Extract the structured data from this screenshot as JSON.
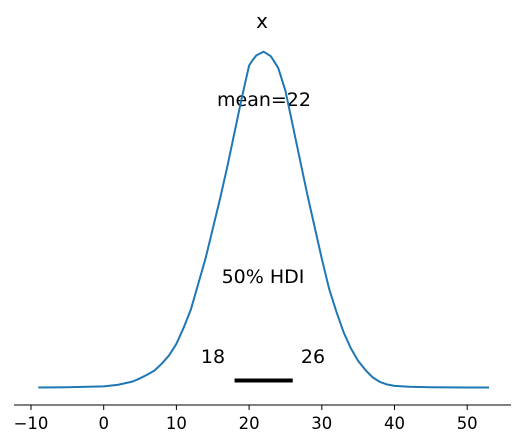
{
  "chart_data": {
    "type": "line",
    "title": "x",
    "xlabel": "",
    "ylabel": "",
    "xlim": [
      -10,
      53
    ],
    "xticks": [
      -10,
      0,
      10,
      20,
      30,
      40,
      50
    ],
    "xtick_labels": [
      "−10",
      "0",
      "10",
      "20",
      "30",
      "40",
      "50"
    ],
    "grid": false,
    "series": [
      {
        "color": "#1f77b4",
        "x": [
          -9,
          -5,
          0,
          2,
          4,
          5,
          6,
          7,
          8,
          9,
          10,
          11,
          12,
          13,
          14,
          15,
          16,
          17,
          18,
          19,
          20,
          20.5,
          21,
          22,
          23,
          24,
          25,
          26,
          27,
          28,
          29,
          30,
          31,
          32,
          33,
          34,
          35,
          36,
          37,
          38,
          39,
          40,
          42,
          45,
          50,
          53
        ],
        "y": [
          0.0001,
          0.0005,
          0.0025,
          0.006,
          0.013,
          0.02,
          0.028,
          0.037,
          0.052,
          0.07,
          0.095,
          0.13,
          0.17,
          0.225,
          0.28,
          0.345,
          0.41,
          0.48,
          0.555,
          0.63,
          0.7,
          0.712,
          0.722,
          0.73,
          0.72,
          0.695,
          0.645,
          0.57,
          0.495,
          0.42,
          0.35,
          0.28,
          0.215,
          0.165,
          0.12,
          0.085,
          0.058,
          0.038,
          0.022,
          0.012,
          0.0065,
          0.0035,
          0.0015,
          0.0005,
          0.0001,
          5e-05
        ]
      }
    ],
    "annotations": {
      "mean_label": "mean=22",
      "hdi_label": "50% HDI",
      "hdi_low_label": "18",
      "hdi_high_label": "26"
    },
    "hdi": {
      "low": 18,
      "high": 26,
      "color": "#000000"
    }
  }
}
